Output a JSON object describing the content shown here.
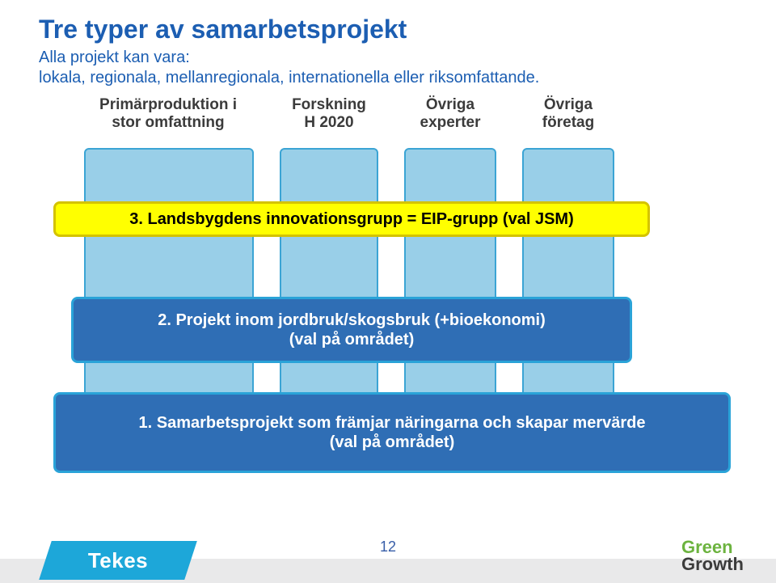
{
  "colors": {
    "title": "#1c5eb2",
    "subtitle": "#1c5eb2",
    "col_label": "#3b3b3b",
    "pillar_fill": "#99cfe8",
    "pillar_border": "#3ba4d4",
    "bar_yellow_fill": "#ffff00",
    "bar_yellow_border": "#d4c300",
    "bar_yellow_text": "#000000",
    "bar_blue_fill": "#2f6eb5",
    "bar_blue_border": "#2aa3d8",
    "footer_band": "#e9e9ea",
    "tekes_fill": "#1da7d9",
    "page_num": "#375da8",
    "gg_green": "#6cb33f",
    "gg_growth": "#3b3b3b"
  },
  "title": "Tre typer av samarbetsprojekt",
  "subtitle_lines": [
    "Alla projekt kan vara:",
    "lokala, regionala, mellanregionala, internationella eller riksomfattande."
  ],
  "columns": [
    {
      "label": "Primärproduktion i\nstor omfattning"
    },
    {
      "label": "Forskning\nH 2020"
    },
    {
      "label": "Övriga\nexperter"
    },
    {
      "label": "Övriga\nföretag"
    }
  ],
  "bars": {
    "yellow": "3. Landsbygdens innovationsgrupp = EIP-grupp (val JSM)",
    "blue_mid": "2. Projekt inom jordbruk/skogsbruk (+bioekonomi)\n(val på området)",
    "blue_bot": "1. Samarbetsprojekt som främjar näringarna och skapar mervärde\n(val på området)"
  },
  "footer": {
    "tekes": "Tekes",
    "page": "12",
    "gg_green": "Green",
    "gg_growth": "Growth"
  }
}
